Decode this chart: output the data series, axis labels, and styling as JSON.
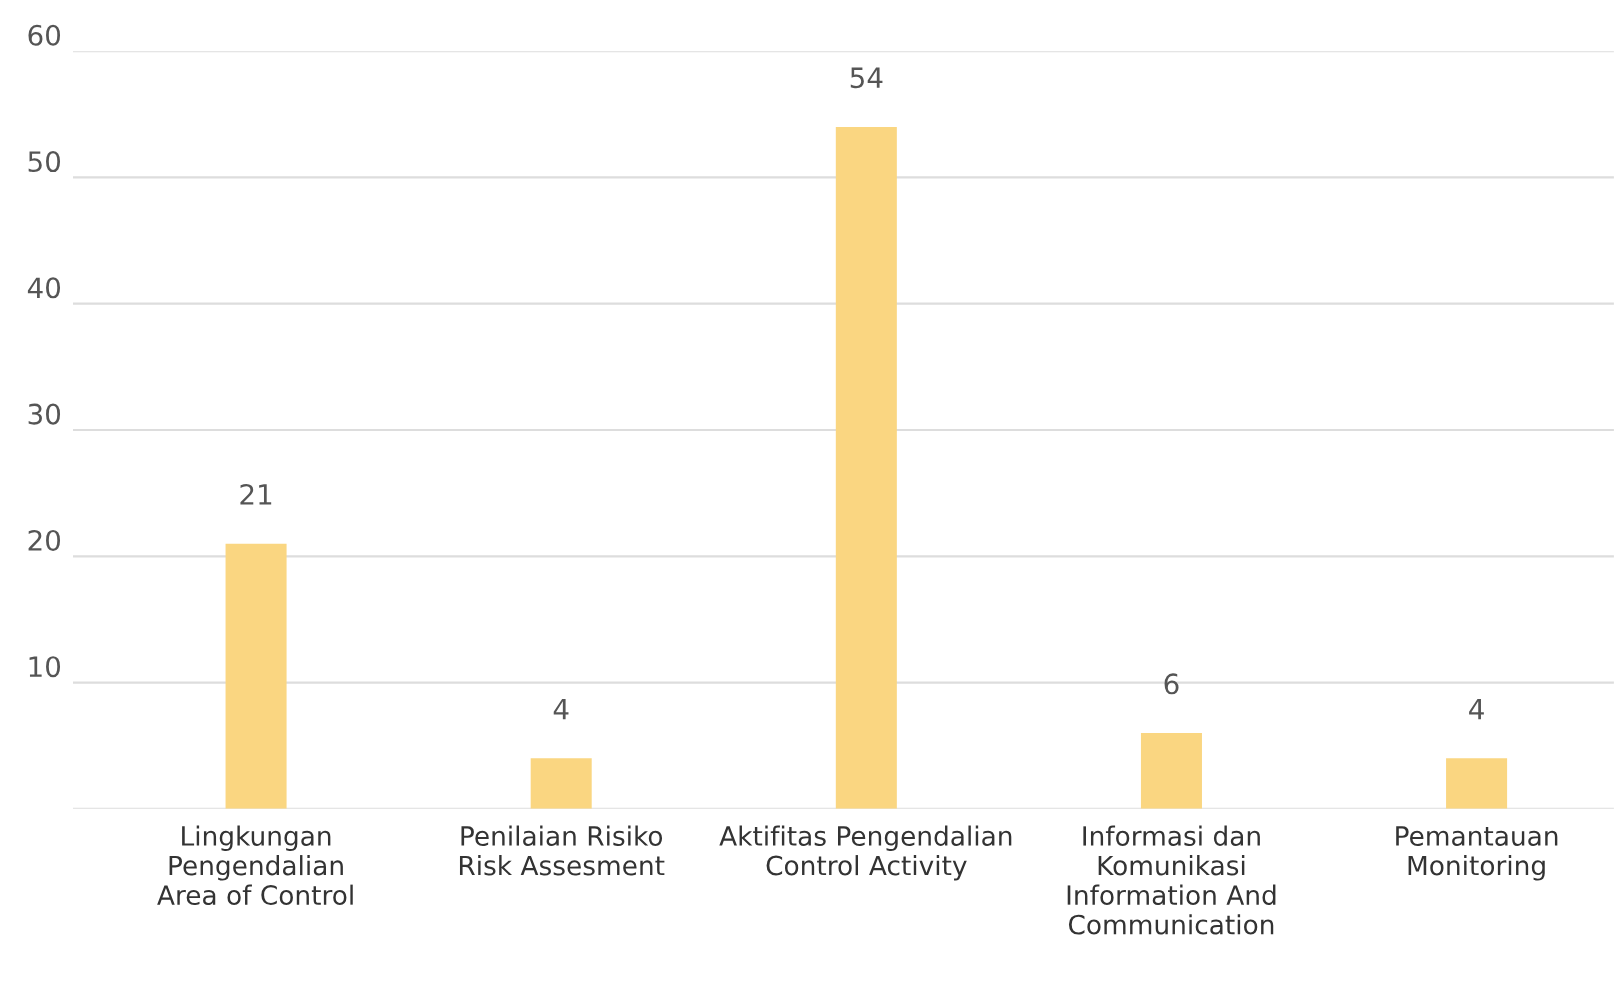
{
  "chart_data": {
    "type": "bar",
    "categories": [
      "Lingkungan\nPengendalian\nArea of Control",
      "Penilaian Risiko\nRisk Assesment",
      "Aktifitas Pengendalian\nControl Activity",
      "Informasi dan\nKomunikasi\nInformation And\nCommunication",
      "Pemantauan\nMonitoring"
    ],
    "values": [
      21,
      4,
      54,
      6,
      4
    ],
    "color": "#fad681",
    "ylim": [
      0,
      60
    ],
    "yticks": [
      {
        "value": 0,
        "label": null
      },
      10,
      20,
      30,
      40,
      50,
      60
    ],
    "grid": "y",
    "data_labels": true
  }
}
